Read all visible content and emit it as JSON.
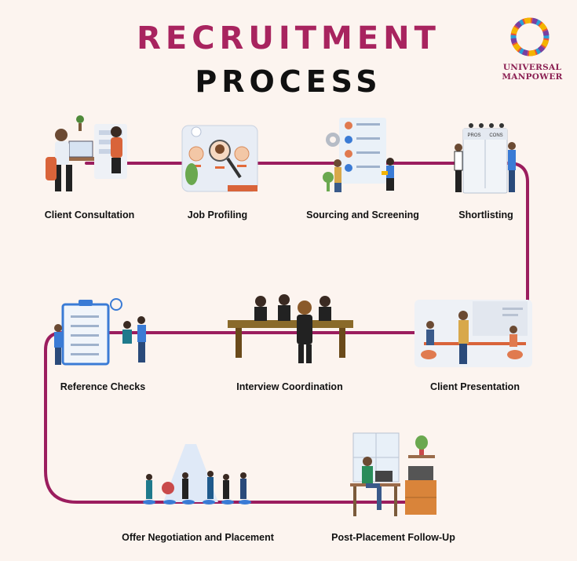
{
  "title": {
    "line1": "RECRUITMENT",
    "line2": "PROCESS"
  },
  "logo": {
    "line1": "UNIVERSAL",
    "line2": "MANPOWER"
  },
  "steps": [
    {
      "label": "Client Consultation"
    },
    {
      "label": "Job Profiling"
    },
    {
      "label": "Sourcing and Screening"
    },
    {
      "label": "Shortlisting"
    },
    {
      "label": "Client Presentation"
    },
    {
      "label": "Interview Coordination"
    },
    {
      "label": "Reference Checks"
    },
    {
      "label": "Offer Negotiation and Placement"
    },
    {
      "label": "Post-Placement Follow-Up"
    }
  ],
  "colors": {
    "path": "#9b1d5e",
    "title": "#a8245f",
    "background": "#fcf4ef"
  }
}
